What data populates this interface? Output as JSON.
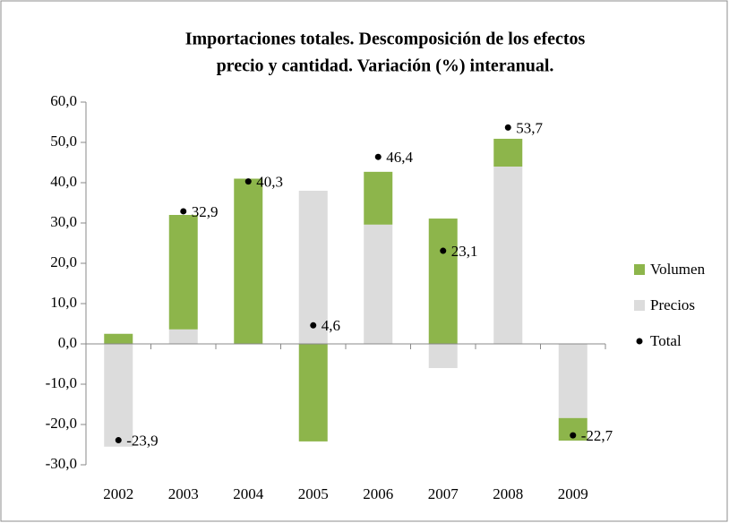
{
  "chart_data": {
    "type": "stacked_bar",
    "title": [
      "Importaciones totales. Descomposición de los efectos",
      "precio y cantidad. Variación (%) interanual."
    ],
    "categories": [
      "2002",
      "2003",
      "2004",
      "2005",
      "2006",
      "2007",
      "2008",
      "2009"
    ],
    "series": [
      {
        "name": "Volumen",
        "color": "#8db54b",
        "type": "bar",
        "values": [
          2.5,
          28.4,
          41.0,
          -24.2,
          13.1,
          31.1,
          6.9,
          -5.6
        ]
      },
      {
        "name": "Precios",
        "color": "#dcdcdc",
        "type": "bar",
        "values": [
          -25.5,
          3.6,
          0,
          38.0,
          29.6,
          -6.0,
          44.0,
          -18.4
        ]
      },
      {
        "name": "Total",
        "color": "#000000",
        "type": "point",
        "values": [
          -23.9,
          32.9,
          40.3,
          4.6,
          46.4,
          23.1,
          53.7,
          -22.7
        ],
        "value_labels": [
          "-23,9",
          "32,9",
          "40,3",
          "4,6",
          "46,4",
          "23,1",
          "53,7",
          "-22,7"
        ]
      }
    ],
    "ylim": [
      -30,
      60
    ],
    "yticks": [
      {
        "value": -30,
        "label": "-30,0"
      },
      {
        "value": -20,
        "label": "-20,0"
      },
      {
        "value": -10,
        "label": "-10,0"
      },
      {
        "value": 0,
        "label": "0,0"
      },
      {
        "value": 10,
        "label": "10,0"
      },
      {
        "value": 20,
        "label": "20,0"
      },
      {
        "value": 30,
        "label": "30,0"
      },
      {
        "value": 40,
        "label": "40,0"
      },
      {
        "value": 50,
        "label": "50,0"
      },
      {
        "value": 60,
        "label": "60,0"
      }
    ],
    "legend": "right"
  }
}
